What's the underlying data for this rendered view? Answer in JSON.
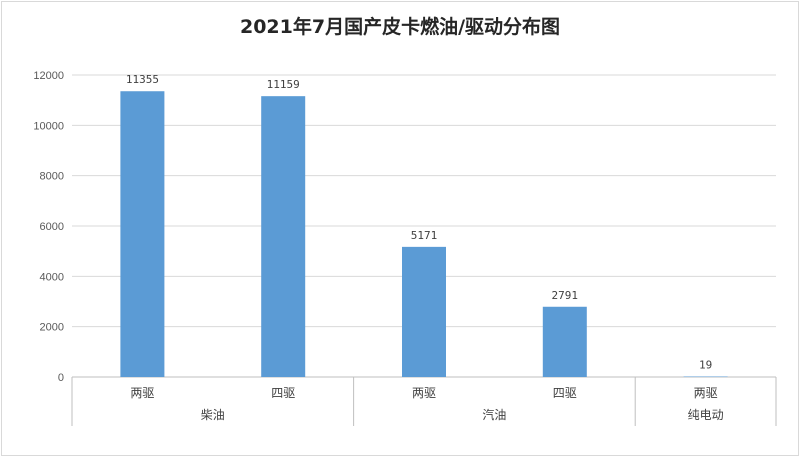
{
  "chart_data": {
    "type": "bar",
    "title": "2021年7月国产皮卡燃油/驱动分布图",
    "categories": [
      "两驱",
      "四驱",
      "两驱",
      "四驱",
      "两驱"
    ],
    "groups": [
      {
        "label": "柴油",
        "span": 2
      },
      {
        "label": "汽油",
        "span": 2
      },
      {
        "label": "纯电动",
        "span": 1
      }
    ],
    "values": [
      11355,
      11159,
      5171,
      2791,
      19
    ],
    "ylim": [
      0,
      12000
    ],
    "yticks": [
      0,
      2000,
      4000,
      6000,
      8000,
      10000,
      12000
    ],
    "grid": true,
    "legend": "none",
    "bar_color": "#5b9bd5"
  }
}
